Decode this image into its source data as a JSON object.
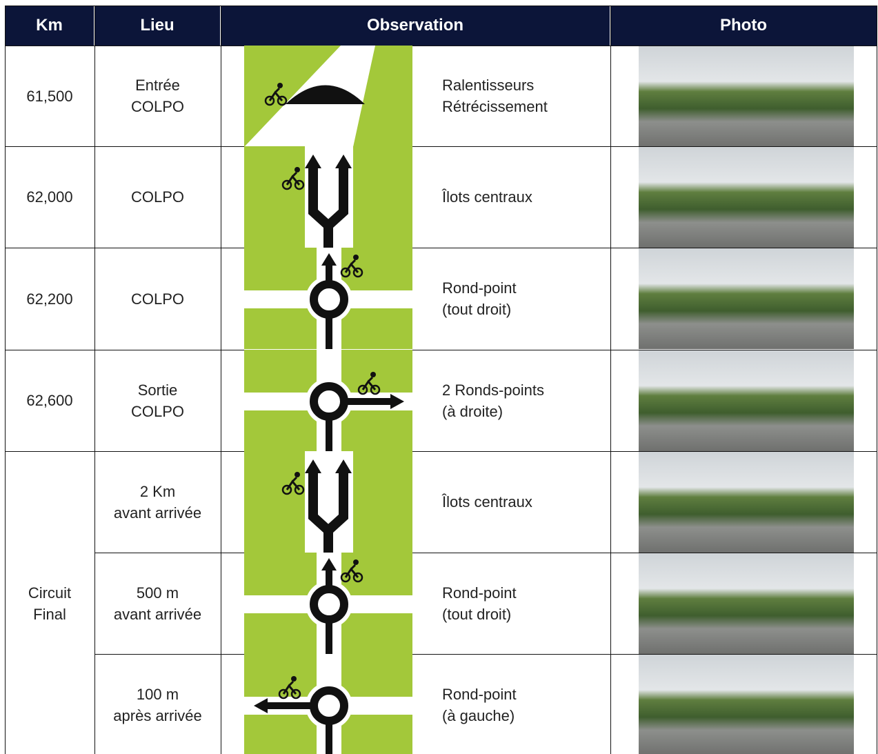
{
  "header": {
    "columns": [
      "Km",
      "Lieu",
      "Observation",
      "Photo"
    ]
  },
  "table": {
    "rows": [
      {
        "km": [
          "61,500"
        ],
        "lieu": [
          "Entrée",
          "COLPO"
        ],
        "observation": [
          "Ralentisseurs",
          "Rétrécissement"
        ]
      },
      {
        "km": [
          "62,000"
        ],
        "lieu": [
          "COLPO"
        ],
        "observation": [
          "Îlots centraux"
        ]
      },
      {
        "km": [
          "62,200"
        ],
        "lieu": [
          "COLPO"
        ],
        "observation": [
          "Rond-point",
          "(tout droit)"
        ]
      },
      {
        "km": [
          "62,600"
        ],
        "lieu": [
          "Sortie",
          "COLPO"
        ],
        "observation": [
          "2 Ronds-points",
          "(à droite)"
        ]
      },
      {
        "km": [
          "Circuit",
          "Final"
        ],
        "lieu": [
          "2 Km",
          "avant arrivée"
        ],
        "observation": [
          "Îlots centraux"
        ]
      },
      {
        "lieu": [
          "500 m",
          "avant arrivée"
        ],
        "observation": [
          "Rond-point",
          "(tout droit)"
        ]
      },
      {
        "lieu": [
          "100 m",
          "après arrivée"
        ],
        "observation": [
          "Rond-point",
          "(à gauche)"
        ]
      }
    ]
  }
}
